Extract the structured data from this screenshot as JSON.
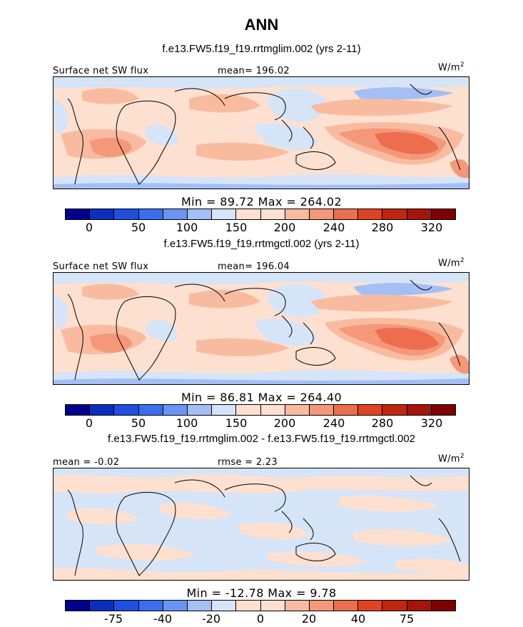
{
  "title": "ANN",
  "colors": {
    "colorbar": [
      "#00008b",
      "#0a2fbf",
      "#1f4fe0",
      "#3a6df0",
      "#6b94f2",
      "#a3bff5",
      "#d6e4f8",
      "#fde0d0",
      "#f9bba0",
      "#f59779",
      "#ec6e4f",
      "#de4323",
      "#c0260f",
      "#a4140a",
      "#7f0000"
    ]
  },
  "chart_data": [
    {
      "type": "heatmap",
      "name": "panel-1",
      "subtitle": "f.e13.FW5.f19_f19.rrtmglim.002 (yrs 2-11)",
      "variable": "Surface net SW flux",
      "mean_label": "mean=",
      "mean": "196.02",
      "units": "W/m",
      "units_exp": "2",
      "minmax_text": "Min =   89.72 Max =  264.02",
      "min": 89.72,
      "max": 264.02,
      "colorbar_ticks": [
        "0",
        "50",
        "100",
        "150",
        "200",
        "240",
        "280",
        "320"
      ]
    },
    {
      "type": "heatmap",
      "name": "panel-2",
      "subtitle": "f.e13.FW5.f19_f19.rrtmgctl.002 (yrs 2-11)",
      "variable": "Surface net SW flux",
      "mean_label": "mean=",
      "mean": "196.04",
      "units": "W/m",
      "units_exp": "2",
      "minmax_text": "Min =  86.81 Max =  264.40",
      "min": 86.81,
      "max": 264.4,
      "colorbar_ticks": [
        "0",
        "50",
        "100",
        "150",
        "200",
        "240",
        "280",
        "320"
      ]
    },
    {
      "type": "heatmap",
      "name": "panel-diff",
      "subtitle": "f.e13.FW5.f19_f19.rrtmglim.002 - f.e13.FW5.f19_f19.rrtmgctl.002",
      "mean_label": "mean =",
      "mean": "-0.02",
      "rmse_label": "rmse =",
      "rmse": "2.23",
      "units": "W/m",
      "units_exp": "2",
      "minmax_text": "Min = -12.78 Max =    9.78",
      "min": -12.78,
      "max": 9.78,
      "colorbar_ticks": [
        "-75",
        "-40",
        "-20",
        "0",
        "20",
        "40",
        "75"
      ]
    }
  ]
}
